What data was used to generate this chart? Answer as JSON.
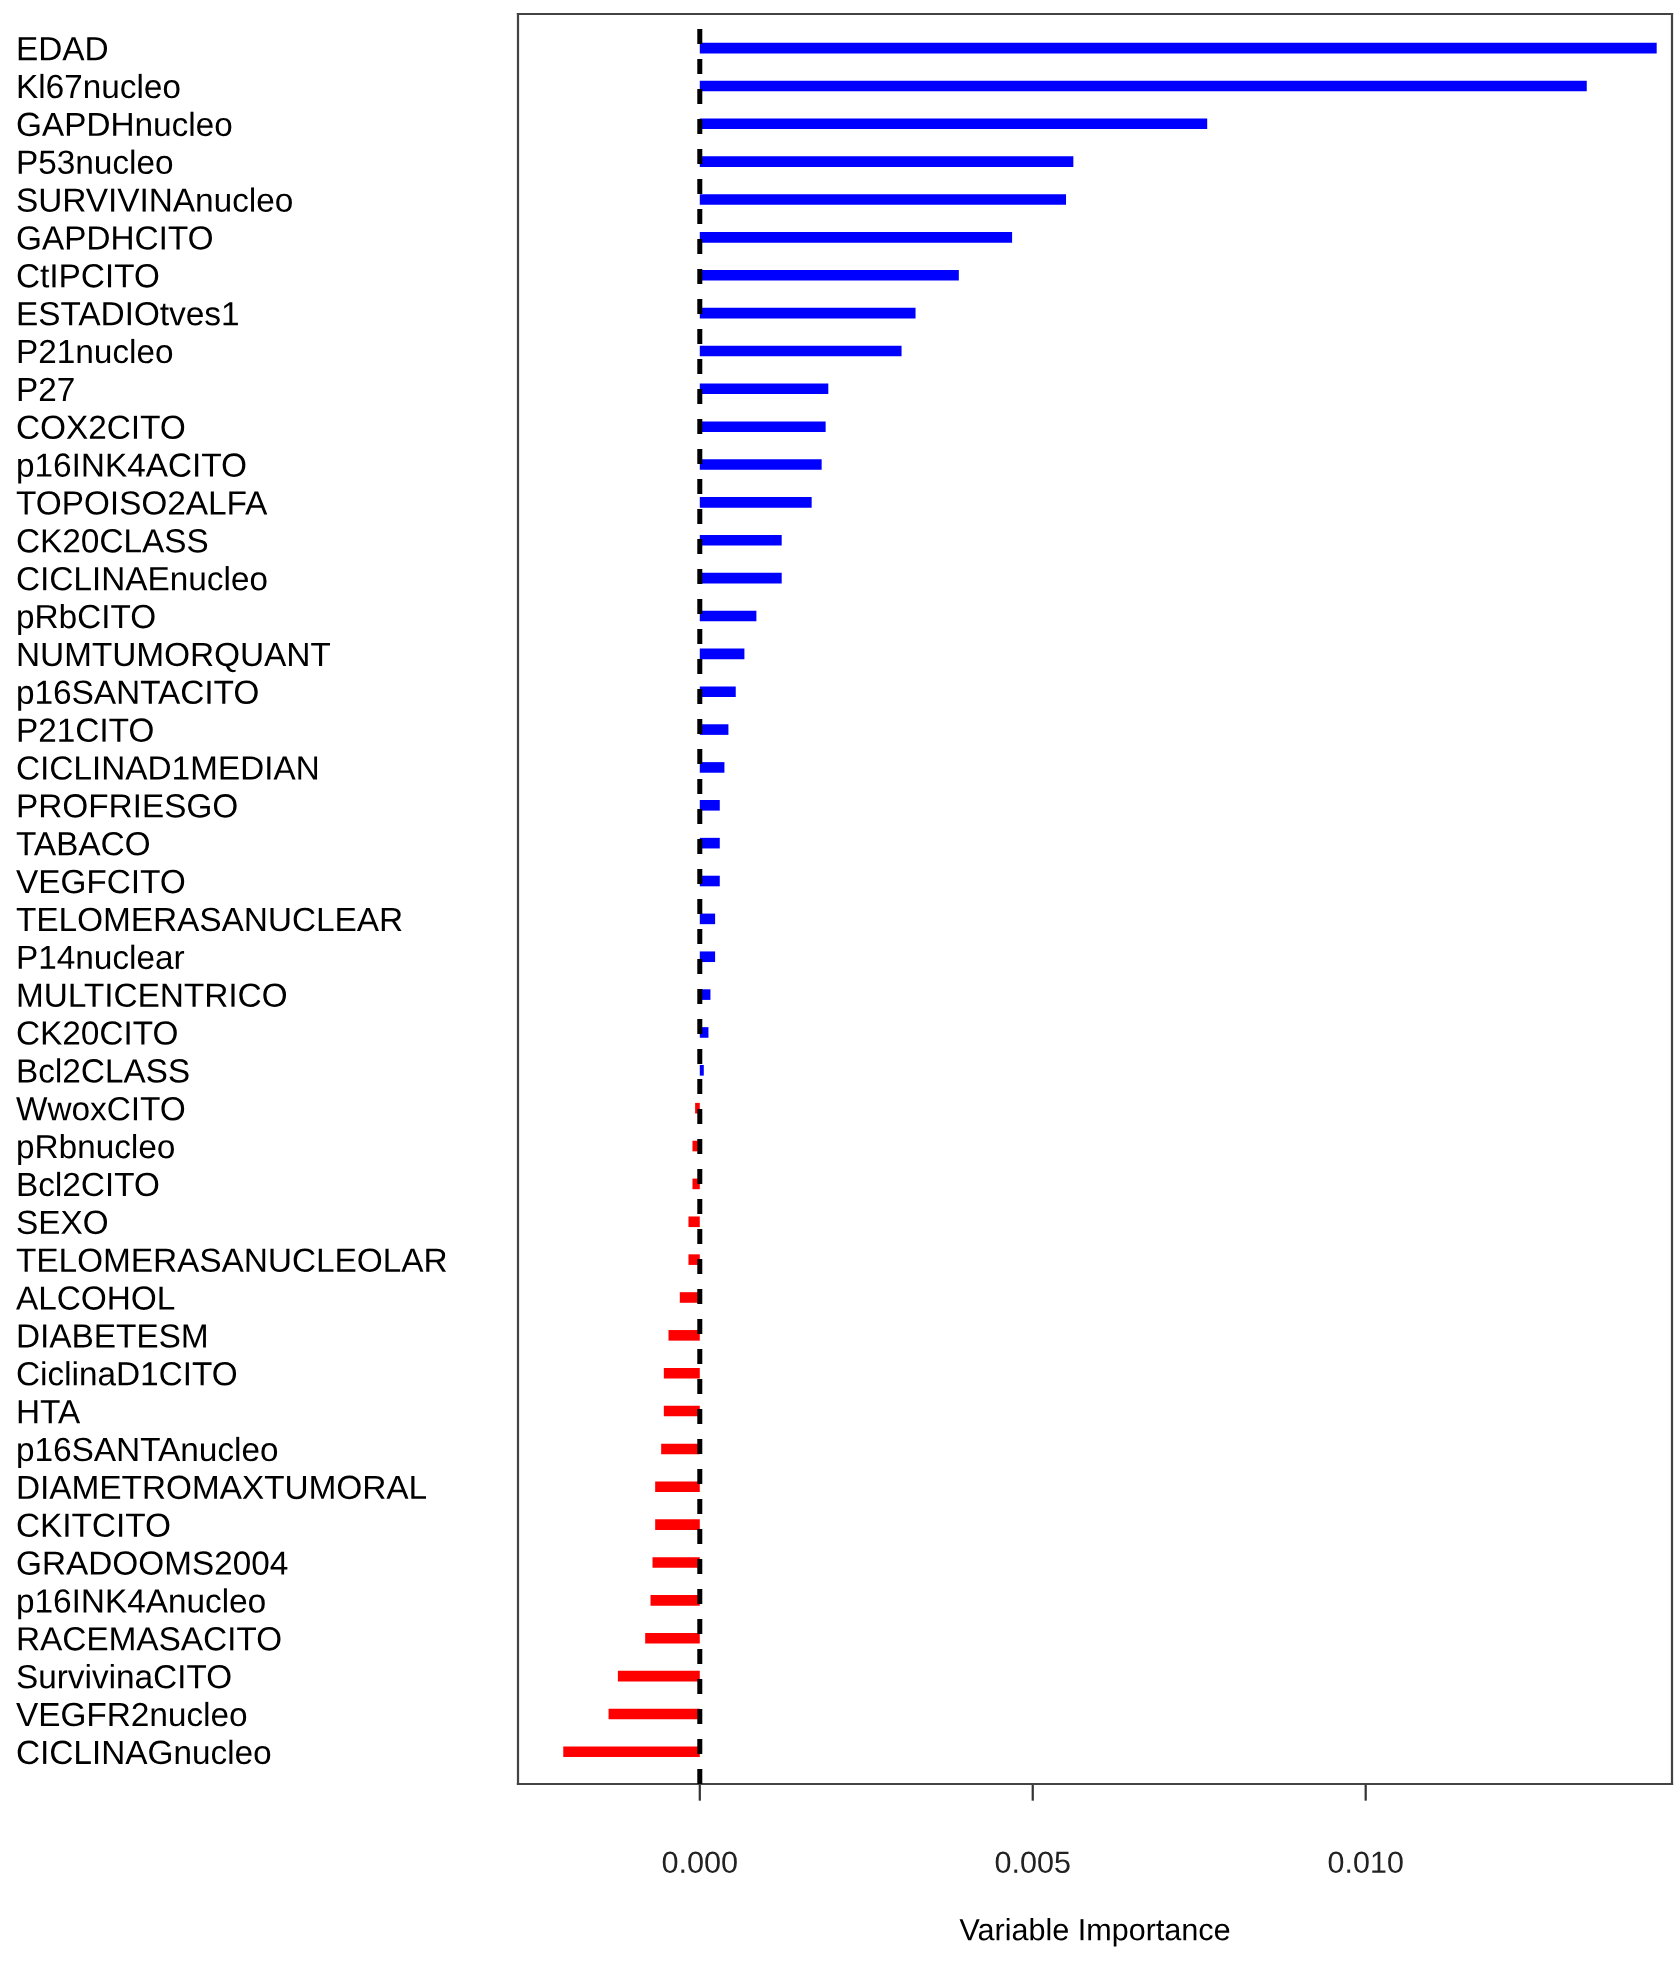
{
  "chart_data": {
    "type": "bar",
    "orientation": "horizontal",
    "xlabel": "Variable Importance",
    "categories": [
      "EDAD",
      "Kl67nucleo",
      "GAPDHnucleo",
      "P53nucleo",
      "SURVIVINAnucleo",
      "GAPDHCITO",
      "CtIPCITO",
      "ESTADIOtves1",
      "P21nucleo",
      "P27",
      "COX2CITO",
      "p16INK4ACITO",
      "TOPOISO2ALFA",
      "CK20CLASS",
      "CICLINAEnucleo",
      "pRbCITO",
      "NUMTUMORQUANT",
      "p16SANTACITO",
      "P21CITO",
      "CICLINAD1MEDIAN",
      "PROFRIESGO",
      "TABACO",
      "VEGFCITO",
      "TELOMERASANUCLEAR",
      "P14nuclear",
      "MULTICENTRICO",
      "CK20CITO",
      "Bcl2CLASS",
      "WwoxCITO",
      "pRbnucleo",
      "Bcl2CITO",
      "SEXO",
      "TELOMERASANUCLEOLAR",
      "ALCOHOL",
      "DIABETESM",
      "CiclinaD1CITO",
      "HTA",
      "p16SANTAnucleo",
      "DIAMETROMAXTUMORAL",
      "CKITCITO",
      "GRADOOMS2004",
      "p16INK4Anucleo",
      "RACEMASACITO",
      "SurvivinaCITO",
      "VEGFR2nucleo",
      "CICLINAGnucleo"
    ],
    "values": [
      0.01437,
      0.01332,
      0.00762,
      0.00561,
      0.0055,
      0.00469,
      0.00389,
      0.00324,
      0.00303,
      0.00193,
      0.00189,
      0.00183,
      0.00168,
      0.00123,
      0.00123,
      0.00085,
      0.00067,
      0.00054,
      0.00043,
      0.00037,
      0.0003,
      0.0003,
      0.0003,
      0.00023,
      0.00023,
      0.00016,
      0.00013,
      6e-05,
      -7e-05,
      -0.00011,
      -0.00011,
      -0.00017,
      -0.00017,
      -0.0003,
      -0.00047,
      -0.00054,
      -0.00054,
      -0.00058,
      -0.00067,
      -0.00067,
      -0.00071,
      -0.00074,
      -0.00082,
      -0.00123,
      -0.00137,
      -0.00205
    ],
    "colors": [
      "#0000ff",
      "#0000ff",
      "#0000ff",
      "#0000ff",
      "#0000ff",
      "#0000ff",
      "#0000ff",
      "#0000ff",
      "#0000ff",
      "#0000ff",
      "#0000ff",
      "#0000ff",
      "#0000ff",
      "#0000ff",
      "#0000ff",
      "#0000ff",
      "#0000ff",
      "#0000ff",
      "#0000ff",
      "#0000ff",
      "#0000ff",
      "#0000ff",
      "#0000ff",
      "#0000ff",
      "#0000ff",
      "#0000ff",
      "#0000ff",
      "#0000ff",
      "#ff0000",
      "#ff0000",
      "#ff0000",
      "#ff0000",
      "#ff0000",
      "#ff0000",
      "#ff0000",
      "#ff0000",
      "#ff0000",
      "#ff0000",
      "#ff0000",
      "#ff0000",
      "#ff0000",
      "#ff0000",
      "#ff0000",
      "#ff0000",
      "#ff0000",
      "#ff0000"
    ],
    "xlim": [
      -0.00273,
      0.0146
    ],
    "xticks": [
      {
        "value": 0,
        "label": "0.000"
      },
      {
        "value": 0.005,
        "label": "0.005"
      },
      {
        "value": 0.01,
        "label": "0.010"
      }
    ],
    "ref_lines": [
      {
        "axis": "x",
        "value": 0,
        "color": "#000000",
        "line_style": "dashed"
      }
    ],
    "grid": false,
    "legend": false
  }
}
